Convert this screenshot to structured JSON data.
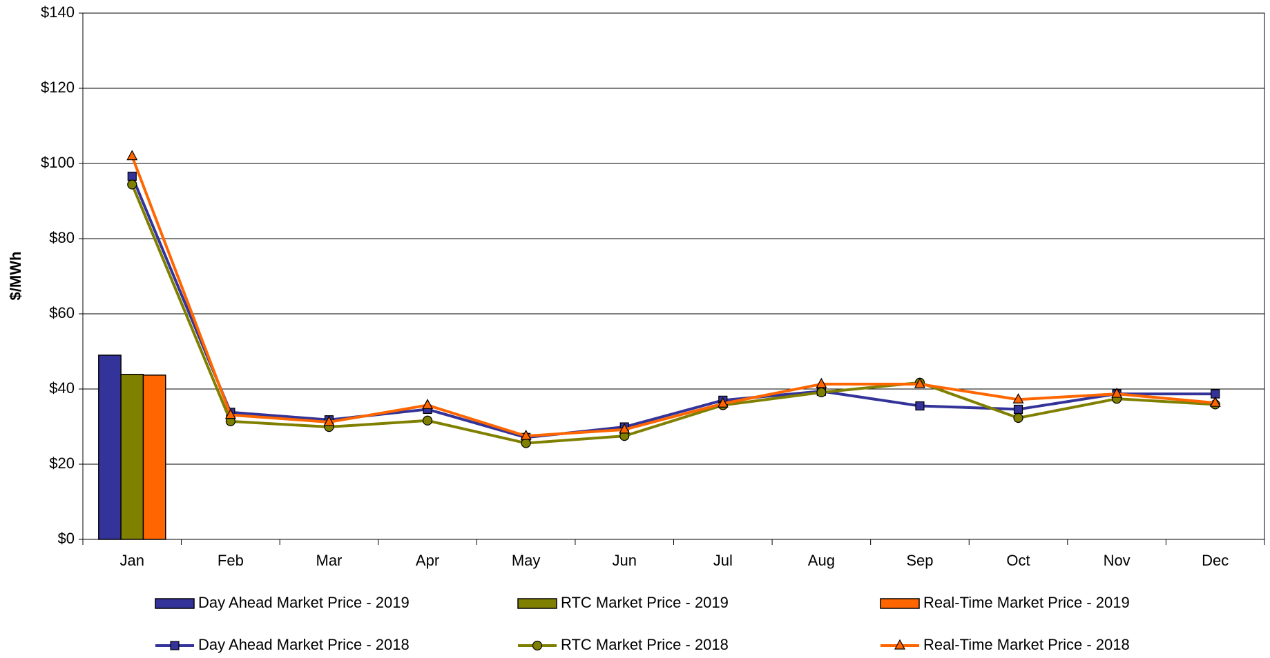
{
  "chart_data": {
    "type": "bar-line",
    "y_label": "$/MWh",
    "categories": [
      "Jan",
      "Feb",
      "Mar",
      "Apr",
      "May",
      "Jun",
      "Jul",
      "Aug",
      "Sep",
      "Oct",
      "Nov",
      "Dec"
    ],
    "ylim": [
      0,
      140
    ],
    "yticks": [
      {
        "value": 0,
        "label": "$0"
      },
      {
        "value": 20,
        "label": "$20"
      },
      {
        "value": 40,
        "label": "$40"
      },
      {
        "value": 60,
        "label": "$60"
      },
      {
        "value": 80,
        "label": "$80"
      },
      {
        "value": 100,
        "label": "$100"
      },
      {
        "value": 120,
        "label": "$120"
      },
      {
        "value": 140,
        "label": "$140"
      }
    ],
    "grid": true,
    "series": [
      {
        "name": "Day Ahead Market Price - 2019",
        "type": "bar",
        "color": "#333399",
        "values": [
          49.0,
          null,
          null,
          null,
          null,
          null,
          null,
          null,
          null,
          null,
          null,
          null
        ]
      },
      {
        "name": "RTC Market Price - 2019",
        "type": "bar",
        "color": "#808000",
        "values": [
          43.9,
          null,
          null,
          null,
          null,
          null,
          null,
          null,
          null,
          null,
          null,
          null
        ]
      },
      {
        "name": "Real-Time Market Price - 2019",
        "type": "bar",
        "color": "#ff6600",
        "values": [
          43.7,
          null,
          null,
          null,
          null,
          null,
          null,
          null,
          null,
          null,
          null,
          null
        ]
      },
      {
        "name": "Day Ahead Market Price - 2018",
        "type": "line",
        "marker": "square",
        "color": "#333399",
        "values": [
          96.6,
          33.8,
          31.8,
          34.6,
          27.1,
          29.9,
          37.0,
          39.4,
          35.5,
          34.6,
          38.7,
          38.7
        ]
      },
      {
        "name": "RTC Market Price - 2018",
        "type": "line",
        "marker": "circle",
        "color": "#808000",
        "values": [
          94.4,
          31.4,
          29.9,
          31.6,
          25.6,
          27.5,
          35.7,
          39.1,
          41.7,
          32.3,
          37.4,
          35.9
        ]
      },
      {
        "name": "Real-Time Market Price - 2018",
        "type": "line",
        "marker": "triangle",
        "color": "#ff6600",
        "values": [
          101.9,
          33.1,
          31.2,
          35.7,
          27.5,
          29.2,
          36.1,
          41.3,
          41.3,
          37.2,
          38.7,
          36.3
        ]
      }
    ]
  }
}
